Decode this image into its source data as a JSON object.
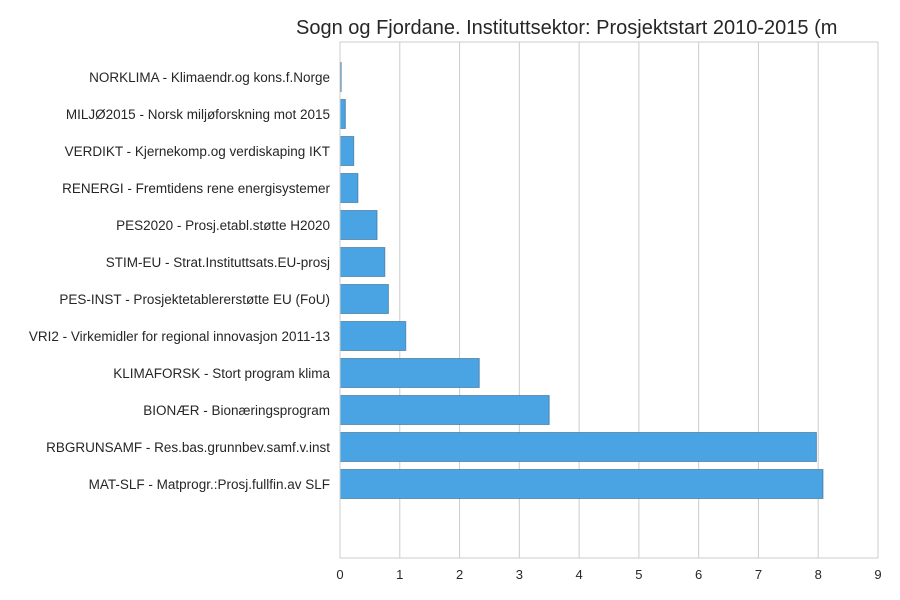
{
  "chart_data": {
    "type": "bar",
    "orientation": "horizontal",
    "title": "Sogn og Fjordane. Instituttsektor: Prosjektstart 2010-2015 (m",
    "categories": [
      "NORKLIMA - Klimaendr.og kons.f.Norge",
      "MILJØ2015 - Norsk miljøforskning mot 2015",
      "VERDIKT - Kjernekomp.og verdiskaping IKT",
      "RENERGI - Fremtidens rene energisystemer",
      "PES2020 - Prosj.etabl.støtte H2020",
      "STIM-EU - Strat.Instituttsats.EU-prosj",
      "PES-INST - Prosjektetablererstøtte EU (FoU)",
      "VRI2 - Virkemidler for regional innovasjon 2011-13",
      "KLIMAFORSK - Stort program klima",
      "BIONÆR - Bionæringsprogram",
      "RBGRUNSAMF - Res.bas.grunnbev.samf.v.inst",
      "MAT-SLF - Matprogr.:Prosj.fullfin.av SLF"
    ],
    "values": [
      0.02,
      0.09,
      0.23,
      0.3,
      0.62,
      0.75,
      0.81,
      1.1,
      2.33,
      3.5,
      7.97,
      8.08
    ],
    "xlim": [
      0,
      9
    ],
    "xticks": [
      "0",
      "1",
      "2",
      "3",
      "4",
      "5",
      "6",
      "7",
      "8",
      "9"
    ],
    "xlabel": "",
    "ylabel": "",
    "grid": "vertical",
    "bar_color": "#4aa3e2"
  }
}
